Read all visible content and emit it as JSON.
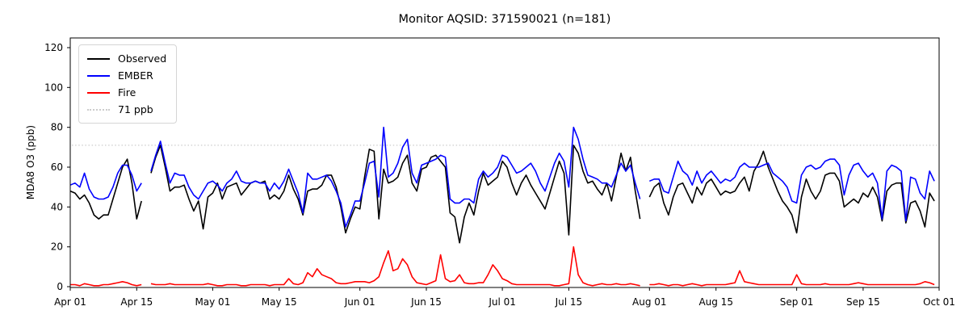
{
  "title": "Monitor AQSID: 371590021 (n=181)",
  "legend": {
    "items": [
      {
        "label": "Observed",
        "color": "#000000",
        "style": "solid"
      },
      {
        "label": "EMBER",
        "color": "#0000ff",
        "style": "solid"
      },
      {
        "label": "Fire",
        "color": "#ff0000",
        "style": "solid"
      },
      {
        "label": "71 ppb",
        "color": "#cccccc",
        "style": "dotted"
      }
    ]
  },
  "chart_data": {
    "type": "line",
    "title": "Monitor AQSID: 371590021 (n=181)",
    "xlabel": "",
    "ylabel": "MDA8 O3 (ppb)",
    "ylim": [
      0,
      125
    ],
    "yticks": [
      0,
      20,
      40,
      60,
      80,
      100,
      120
    ],
    "grid": false,
    "legend_position": "upper left",
    "x_domain_days": 183,
    "x_start": "Apr 01",
    "x_end": "Oct 01",
    "xticks": [
      {
        "day": 0,
        "label": "Apr 01"
      },
      {
        "day": 14,
        "label": "Apr 15"
      },
      {
        "day": 30,
        "label": "May 01"
      },
      {
        "day": 44,
        "label": "May 15"
      },
      {
        "day": 61,
        "label": "Jun 01"
      },
      {
        "day": 75,
        "label": "Jun 15"
      },
      {
        "day": 91,
        "label": "Jul 01"
      },
      {
        "day": 105,
        "label": "Jul 15"
      },
      {
        "day": 122,
        "label": "Aug 01"
      },
      {
        "day": 136,
        "label": "Aug 15"
      },
      {
        "day": 153,
        "label": "Sep 01"
      },
      {
        "day": 167,
        "label": "Sep 15"
      },
      {
        "day": 183,
        "label": "Oct 01"
      }
    ],
    "threshold": {
      "value": 71,
      "label": "71 ppb",
      "color": "#cccccc",
      "style": "dotted"
    },
    "series": [
      {
        "name": "Observed",
        "color": "#000000",
        "values": [
          48,
          47,
          44,
          46,
          42,
          36,
          34,
          36,
          36,
          44,
          52,
          60,
          64,
          52,
          34,
          43,
          null,
          57,
          65,
          71,
          60,
          48,
          50,
          50,
          51,
          44,
          38,
          43,
          29,
          45,
          47,
          52,
          44,
          50,
          51,
          52,
          46,
          49,
          52,
          53,
          52,
          53,
          44,
          46,
          44,
          48,
          56,
          49,
          44,
          36,
          48,
          49,
          49,
          51,
          56,
          56,
          50,
          40,
          27,
          34,
          40,
          39,
          55,
          69,
          68,
          34,
          59,
          52,
          53,
          55,
          62,
          66,
          52,
          48,
          59,
          60,
          65,
          66,
          63,
          60,
          37,
          35,
          22,
          35,
          42,
          36,
          48,
          57,
          51,
          53,
          55,
          63,
          60,
          52,
          46,
          52,
          56,
          51,
          47,
          43,
          39,
          47,
          55,
          63,
          57,
          26,
          71,
          67,
          58,
          52,
          53,
          49,
          46,
          52,
          43,
          55,
          67,
          58,
          65,
          48,
          34,
          null,
          45,
          50,
          52,
          42,
          36,
          45,
          51,
          52,
          47,
          42,
          50,
          46,
          52,
          54,
          50,
          46,
          48,
          47,
          48,
          52,
          55,
          48,
          58,
          62,
          68,
          60,
          54,
          48,
          43,
          40,
          36,
          27,
          45,
          54,
          48,
          44,
          48,
          56,
          57,
          57,
          53,
          40,
          42,
          44,
          42,
          47,
          45,
          50,
          45,
          33,
          48,
          51,
          52,
          52,
          32,
          42,
          43,
          38,
          30,
          47,
          43
        ]
      },
      {
        "name": "EMBER",
        "color": "#0000ff",
        "values": [
          51,
          52,
          50,
          57,
          49,
          45,
          44,
          44,
          45,
          50,
          57,
          61,
          61,
          56,
          48,
          52,
          null,
          58,
          66,
          73,
          62,
          52,
          57,
          56,
          56,
          50,
          46,
          44,
          48,
          52,
          53,
          51,
          48,
          52,
          54,
          58,
          53,
          52,
          52,
          53,
          52,
          52,
          48,
          52,
          49,
          53,
          59,
          53,
          47,
          37,
          57,
          54,
          54,
          55,
          56,
          53,
          48,
          42,
          30,
          36,
          43,
          43,
          52,
          62,
          63,
          45,
          80,
          55,
          57,
          62,
          70,
          74,
          57,
          52,
          61,
          62,
          63,
          64,
          66,
          65,
          44,
          42,
          42,
          44,
          44,
          42,
          54,
          58,
          55,
          57,
          60,
          66,
          65,
          61,
          57,
          58,
          60,
          62,
          58,
          52,
          48,
          55,
          62,
          67,
          63,
          50,
          80,
          74,
          64,
          56,
          55,
          54,
          52,
          52,
          50,
          56,
          62,
          58,
          61,
          52,
          44,
          null,
          53,
          54,
          54,
          48,
          47,
          55,
          63,
          58,
          56,
          51,
          58,
          52,
          56,
          58,
          55,
          52,
          54,
          53,
          55,
          60,
          62,
          60,
          60,
          60,
          61,
          62,
          57,
          55,
          53,
          50,
          43,
          42,
          56,
          60,
          61,
          59,
          60,
          63,
          64,
          64,
          61,
          46,
          56,
          61,
          62,
          58,
          55,
          57,
          52,
          34,
          58,
          61,
          60,
          58,
          33,
          55,
          54,
          47,
          44,
          58,
          53
        ]
      },
      {
        "name": "Fire",
        "color": "#ff0000",
        "values": [
          1,
          1,
          0.5,
          1.5,
          1,
          0.5,
          0.5,
          1,
          1,
          1.5,
          2,
          2.5,
          2,
          1,
          0.5,
          1,
          null,
          1.5,
          1,
          1,
          1,
          1.5,
          1,
          1,
          1,
          1,
          1,
          1,
          1,
          1.5,
          1,
          0.5,
          0.5,
          1,
          1,
          1,
          0.5,
          0.5,
          1,
          1,
          1,
          1,
          0.5,
          1,
          1,
          1,
          4,
          1.5,
          1,
          2,
          7,
          5,
          9,
          6,
          5,
          4,
          2,
          1.5,
          1.5,
          2,
          2.5,
          2.5,
          2.5,
          2,
          3,
          5,
          12,
          18,
          8,
          9,
          14,
          11,
          5,
          2,
          1.5,
          1,
          2,
          3,
          16,
          4,
          2.5,
          3,
          6,
          2,
          1.5,
          1.5,
          2,
          2,
          6,
          11,
          8,
          4,
          3,
          1.5,
          1,
          1,
          1,
          1,
          1,
          1,
          1,
          1,
          0.5,
          0.5,
          1,
          1.5,
          20,
          6,
          2,
          1,
          0.5,
          1,
          1.5,
          1,
          1,
          1.5,
          1,
          1,
          1.5,
          1,
          0.5,
          null,
          1,
          1,
          1.5,
          1,
          0.5,
          1,
          1,
          0.5,
          1,
          1.5,
          1,
          0.5,
          1,
          1,
          1,
          1,
          1,
          1.5,
          2,
          8,
          2.5,
          2,
          1.5,
          1,
          1,
          1,
          1,
          1,
          1,
          1,
          1,
          6,
          1.5,
          1,
          1,
          1,
          1,
          1.5,
          1,
          1,
          1,
          1,
          1,
          1.5,
          2,
          1.5,
          1,
          1,
          1,
          1,
          1,
          1,
          1,
          1,
          1,
          1,
          1,
          1.5,
          2.5,
          2,
          1
        ]
      }
    ]
  }
}
